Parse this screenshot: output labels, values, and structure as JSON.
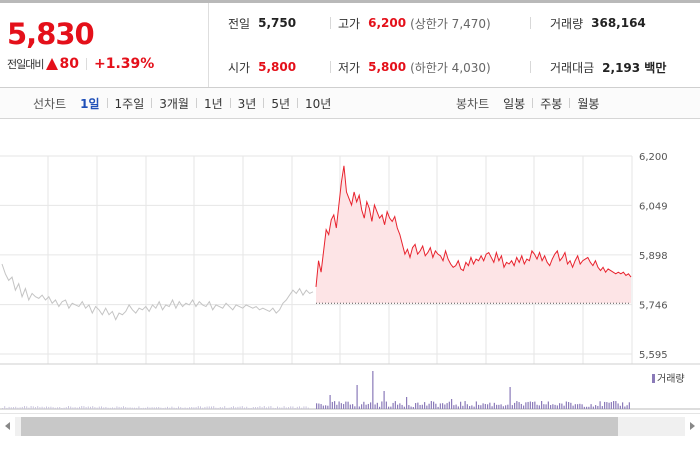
{
  "quote": {
    "current_price": "5,830",
    "change_label": "전일대비",
    "change_value": "80",
    "change_rate": "+1.39%",
    "prev_close_label": "전일",
    "prev_close": "5,750",
    "high_label": "고가",
    "high": "6,200",
    "upper_limit": "(상한가 7,470)",
    "volume_label": "거래량",
    "volume": "368,164",
    "open_label": "시가",
    "open": "5,800",
    "low_label": "저가",
    "low": "5,800",
    "lower_limit": "(하한가 4,030)",
    "trade_value_label": "거래대금",
    "trade_value": "2,193 백만"
  },
  "tabs": {
    "line_label": "선차트",
    "line_periods": [
      "1일",
      "1주일",
      "3개월",
      "1년",
      "3년",
      "5년",
      "10년"
    ],
    "line_active_index": 0,
    "candle_label": "봉차트",
    "candle_periods": [
      "일봉",
      "주봉",
      "월봉"
    ]
  },
  "colors": {
    "up": "#e4101a",
    "line_prev_day": "#c4c4c4",
    "line_today": "#e8232e",
    "area_fill": "#fde4e6",
    "volume_bar": "#8a7ab8",
    "grid": "#e6e6e6"
  },
  "chart_data": {
    "type": "line",
    "ylim": [
      5595,
      6200
    ],
    "y_ticks": [
      "6,200",
      "6,049",
      "5,898",
      "5,746",
      "5,595"
    ],
    "reference_line": 5750,
    "volume_legend": "거래량",
    "series": [
      {
        "values": [
          5870,
          5840,
          5820,
          5830,
          5790,
          5810,
          5770,
          5795,
          5760,
          5780,
          5770,
          5765,
          5775,
          5760,
          5770,
          5750,
          5760,
          5740,
          5755,
          5760,
          5735,
          5750,
          5745,
          5740,
          5755,
          5735,
          5745,
          5720,
          5740,
          5730,
          5715,
          5735,
          5715,
          5725,
          5700,
          5720,
          5715,
          5725,
          5745,
          5730,
          5720,
          5735,
          5730,
          5740,
          5725,
          5745,
          5735,
          5755,
          5730,
          5745,
          5740,
          5760,
          5735,
          5755,
          5740,
          5750,
          5745,
          5760,
          5740,
          5755,
          5745,
          5740,
          5755,
          5730,
          5745,
          5740,
          5735,
          5750,
          5740,
          5730,
          5745,
          5740,
          5735,
          5745,
          5740,
          5735,
          5740,
          5730,
          5735,
          5730,
          5725,
          5735,
          5720,
          5730,
          5750,
          5760,
          5775,
          5790,
          5780,
          5795,
          5775,
          5790,
          5780,
          5785
        ]
      },
      {
        "values": [
          5800,
          5880,
          5845,
          5910,
          5975,
          5960,
          6005,
          6020,
          5980,
          6050,
          6120,
          6170,
          6090,
          6070,
          6050,
          6090,
          6060,
          6080,
          6035,
          6010,
          6060,
          6040,
          6000,
          6050,
          6030,
          6010,
          6020,
          5990,
          6030,
          6010,
          6000,
          6015,
          5980,
          5960,
          5930,
          5900,
          5915,
          5890,
          5920,
          5930,
          5900,
          5910,
          5925,
          5895,
          5905,
          5920,
          5890,
          5910,
          5900,
          5895,
          5880,
          5910,
          5885,
          5870,
          5860,
          5865,
          5880,
          5855,
          5850,
          5875,
          5865,
          5890,
          5870,
          5885,
          5880,
          5895,
          5880,
          5900,
          5905,
          5890,
          5875,
          5905,
          5880,
          5895,
          5860,
          5875,
          5870,
          5880,
          5865,
          5890,
          5875,
          5895,
          5870,
          5885,
          5880,
          5910,
          5900,
          5885,
          5905,
          5880,
          5895,
          5875,
          5865,
          5885,
          5900,
          5910,
          5880,
          5890,
          5905,
          5870,
          5880,
          5860,
          5880,
          5895,
          5870,
          5880,
          5885,
          5890,
          5875,
          5865,
          5880,
          5860,
          5850,
          5860,
          5845,
          5855,
          5850,
          5845,
          5840,
          5845,
          5840,
          5845,
          5835,
          5840,
          5830
        ]
      }
    ]
  }
}
